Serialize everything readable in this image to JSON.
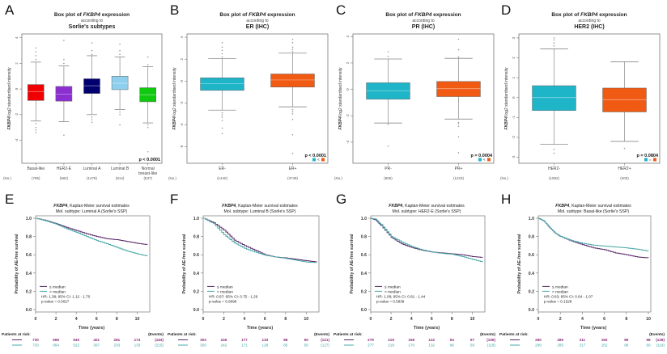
{
  "colors": {
    "cyan": "#1fb5c9",
    "orange": "#f05a12",
    "purple_line": "#5a2a6a",
    "teal_line": "#4aa8a8",
    "risk_purple": "#8a2a7a",
    "risk_teal": "#3aa0a0",
    "axis": "#555555"
  },
  "chart_data": [
    {
      "panel": "A",
      "type": "box",
      "title": [
        "Box plot of FKBP4 expression",
        "according to",
        "Sorlie's subtypes"
      ],
      "ylabel": "FKBP4 log2 standardised intensity",
      "ylim": [
        -5.8,
        4.3
      ],
      "yticks": [
        4,
        2,
        0,
        -2,
        -4
      ],
      "categories": [
        "Basal-like",
        "HER2-E",
        "Luminal A",
        "Luminal B",
        "Normal breast-like"
      ],
      "n": [
        "(785)",
        "(582)",
        "(1476)",
        "(814)",
        "(537)"
      ],
      "nlabel": "(No.)",
      "boxes": [
        {
          "color": "#f00000",
          "q1": -0.9,
          "median": -0.2,
          "q3": 0.35,
          "lo": -2.5,
          "hi": 2.1,
          "out": [
            2.3,
            2.6,
            2.9,
            3.2,
            -2.7,
            -3.0,
            -3.2,
            -3.4
          ]
        },
        {
          "color": "#8b2fd0",
          "q1": -0.95,
          "median": -0.4,
          "q3": 0.2,
          "lo": -2.55,
          "hi": 1.8,
          "out": [
            2.0,
            2.3,
            3.8,
            -3.6
          ]
        },
        {
          "color": "#00006e",
          "q1": -0.35,
          "median": 0.25,
          "q3": 0.8,
          "lo": -2.0,
          "hi": 2.6,
          "out": [
            2.7,
            3.0,
            3.6,
            -2.2,
            -2.4,
            -2.6
          ]
        },
        {
          "color": "#8ecfee",
          "q1": -0.05,
          "median": 0.45,
          "q3": 1.0,
          "lo": -1.6,
          "hi": 2.5,
          "out": [
            2.7,
            3.0,
            3.5,
            -1.8,
            -2.0,
            -2.8
          ]
        },
        {
          "color": "#10c810",
          "q1": -1.0,
          "median": -0.45,
          "q3": 0.1,
          "lo": -2.65,
          "hi": 1.75,
          "out": [
            1.9,
            2.5,
            -2.8,
            -3.0,
            -4.9
          ]
        }
      ],
      "pvalue": "p < 0.0001",
      "legend_marks": false
    },
    {
      "panel": "B",
      "type": "box",
      "title": [
        "Box plot of FKBP4 expression",
        "according to",
        "ER (IHC)"
      ],
      "ylabel": "FKBP4 log2 standardised intensity",
      "ylim": [
        -7.5,
        4.3
      ],
      "yticks": [
        4,
        2,
        0,
        -2,
        -4,
        -6
      ],
      "categories": [
        "ER-",
        "ER+"
      ],
      "n": [
        "(1440)",
        "(3749)"
      ],
      "nlabel": "(No.)",
      "boxes": [
        {
          "color": "#1fb5c9",
          "q1": -0.85,
          "median": -0.25,
          "q3": 0.3,
          "lo": -2.65,
          "hi": 2.05,
          "out": [
            2.2,
            2.5,
            2.8,
            3.1,
            3.5,
            -2.9,
            -3.1,
            -3.3,
            -3.6,
            -4.3,
            -4.8
          ]
        },
        {
          "color": "#f05a12",
          "q1": -0.55,
          "median": 0.1,
          "q3": 0.65,
          "lo": -2.35,
          "hi": 2.55,
          "out": [
            2.7,
            2.9,
            3.1,
            3.5,
            3.8,
            -2.6,
            -2.8,
            -3.0,
            -3.5,
            -4.9,
            -6.6
          ]
        }
      ],
      "pvalue": "p < 0.0001",
      "legend_marks": true,
      "legend_op": "<"
    },
    {
      "panel": "C",
      "type": "box",
      "title": [
        "Box plot of FKBP4 expression",
        "according to",
        "PR (IHC)"
      ],
      "ylabel": "FKBP4 log2 standardised intensity",
      "ylim": [
        -5.6,
        4.2
      ],
      "yticks": [
        4,
        2,
        0,
        -2,
        -4
      ],
      "categories": [
        "PR-",
        "PR+"
      ],
      "n": [
        "(906)",
        "(1223)"
      ],
      "nlabel": "(No.)",
      "boxes": [
        {
          "color": "#1fb5c9",
          "q1": -0.75,
          "median": -0.1,
          "q3": 0.5,
          "lo": -2.55,
          "hi": 2.3,
          "out": [
            2.5,
            2.85,
            -2.65,
            -4.3
          ]
        },
        {
          "color": "#f05a12",
          "q1": -0.55,
          "median": 0.05,
          "q3": 0.6,
          "lo": -2.25,
          "hi": 2.35,
          "out": [
            2.45,
            3.0,
            3.8,
            -2.5,
            -2.6,
            -2.8,
            -3.6,
            -4.8
          ]
        }
      ],
      "pvalue": "p = 0.0004",
      "legend_marks": true,
      "legend_op": "<"
    },
    {
      "panel": "D",
      "type": "box",
      "title": [
        "Box plot of FKBP4 expression",
        "according to",
        "HER2 (IHC)"
      ],
      "ylabel": "FKBP4 log2 standardised intensity",
      "ylim": [
        -3.3,
        3.2
      ],
      "yticks": [
        3,
        2,
        1,
        0,
        -1,
        -2,
        -3
      ],
      "categories": [
        "HER2-",
        "HER2+"
      ],
      "n": [
        "(1592)",
        "(200)"
      ],
      "nlabel": "(No.)",
      "boxes": [
        {
          "color": "#1fb5c9",
          "q1": -0.65,
          "median": 0.0,
          "q3": 0.6,
          "lo": -2.35,
          "hi": 2.45,
          "out": [
            2.6,
            2.75,
            2.9,
            3.0,
            -2.6,
            -2.8
          ]
        },
        {
          "color": "#f05a12",
          "q1": -0.72,
          "median": -0.1,
          "q3": 0.48,
          "lo": -2.2,
          "hi": 1.8,
          "out": [
            -2.55
          ]
        }
      ],
      "pvalue": "p = 0.0804",
      "legend_marks": true,
      "legend_op": "="
    },
    {
      "panel": "E",
      "type": "line",
      "title": [
        "FKBP4, Kaplan-Meier survival estimates",
        "Mol. subtype: Luminal A (Sorlie's SSP)"
      ],
      "xlabel": "Time (years)",
      "ylabel": "Probability of AE-free survival",
      "xlim": [
        0,
        11
      ],
      "xticks": [
        0,
        2,
        4,
        6,
        8,
        10
      ],
      "ylim": [
        0,
        1
      ],
      "yticks": [
        "0.0",
        "0.2",
        "0.4",
        "0.6",
        "0.8",
        "1.0"
      ],
      "legend": [
        "≤ median",
        "> median"
      ],
      "stats": [
        "HR: 1.38; 95% CI: 1.12 - 1.70",
        "p-value = 0.0027"
      ],
      "series": [
        {
          "name": "≤ median",
          "x": [
            0,
            1,
            2,
            3,
            4,
            5,
            6,
            7,
            8,
            9,
            10,
            11
          ],
          "y": [
            1.0,
            0.975,
            0.94,
            0.9,
            0.865,
            0.83,
            0.8,
            0.775,
            0.765,
            0.745,
            0.725,
            0.71
          ]
        },
        {
          "name": "> median",
          "x": [
            0,
            1,
            2,
            3,
            4,
            5,
            6,
            7,
            8,
            9,
            10,
            11
          ],
          "y": [
            1.0,
            0.97,
            0.935,
            0.885,
            0.845,
            0.8,
            0.755,
            0.72,
            0.68,
            0.64,
            0.61,
            0.585
          ]
        }
      ],
      "risk_header": "Patients at risk:",
      "events_header": "(Events)",
      "risk": [
        {
          "counts": [
            "730",
            "668",
            "530",
            "401",
            "281",
            "174"
          ],
          "events": "(163)"
        },
        {
          "counts": [
            "733",
            "664",
            "522",
            "367",
            "233",
            "133"
          ],
          "events": "(215)"
        }
      ]
    },
    {
      "panel": "F",
      "type": "line",
      "title": [
        "FKBP4, Kaplan-Meier survival estimates",
        "Mol. subtype: Luminal B (Sorlie's SSP)"
      ],
      "xlabel": "Time (years)",
      "ylabel": "Probability of AE-free survival",
      "xlim": [
        0,
        11
      ],
      "xticks": [
        0,
        2,
        4,
        6,
        8,
        10
      ],
      "ylim": [
        0,
        1
      ],
      "yticks": [
        "0.0",
        "0.2",
        "0.4",
        "0.6",
        "0.8",
        "1.0"
      ],
      "legend": [
        "≤ median",
        "> median"
      ],
      "stats": [
        "HR: 0.97; 95% CI: 0.75 - 1.26",
        "p-value = 0.8098"
      ],
      "series": [
        {
          "name": "≤ median",
          "x": [
            0,
            1,
            2,
            3,
            4,
            5,
            6,
            7,
            8,
            9,
            10,
            11
          ],
          "y": [
            1.0,
            0.95,
            0.87,
            0.76,
            0.7,
            0.65,
            0.6,
            0.575,
            0.565,
            0.55,
            0.535,
            0.52
          ]
        },
        {
          "name": "> median",
          "x": [
            0,
            1,
            2,
            3,
            4,
            5,
            6,
            7,
            8,
            9,
            10,
            11
          ],
          "y": [
            1.0,
            0.94,
            0.82,
            0.73,
            0.67,
            0.63,
            0.595,
            0.575,
            0.56,
            0.54,
            0.52,
            0.515
          ]
        }
      ],
      "risk_header": "Patients at risk:",
      "events_header": "(Events)",
      "risk": [
        {
          "counts": [
            "303",
            "246",
            "177",
            "133",
            "88",
            "60"
          ],
          "events": "(121)"
        },
        {
          "counts": [
            "303",
            "242",
            "171",
            "128",
            "85",
            "56"
          ],
          "events": "(127)"
        }
      ]
    },
    {
      "panel": "G",
      "type": "line",
      "title": [
        "FKBP4, Kaplan-Meier survival estimates",
        "Mol. subtype: HER2-E (Sorlie's SSP)"
      ],
      "xlabel": "Time (years)",
      "ylabel": "Probability of AE-free survival",
      "xlim": [
        0,
        11
      ],
      "xticks": [
        0,
        2,
        4,
        6,
        8,
        10
      ],
      "ylim": [
        0,
        1
      ],
      "yticks": [
        "0.0",
        "0.2",
        "0.4",
        "0.6",
        "0.8",
        "1.0"
      ],
      "legend": [
        "≤ median",
        "> median"
      ],
      "stats": [
        "HR: 1.08; 95% CI: 0.81 - 1.44",
        "p-value = 0.5838"
      ],
      "series": [
        {
          "name": "≤ median",
          "x": [
            0,
            0.5,
            1,
            2,
            3,
            4,
            5,
            6,
            7,
            8,
            9,
            10,
            11
          ],
          "y": [
            1.0,
            0.98,
            0.92,
            0.79,
            0.72,
            0.68,
            0.65,
            0.63,
            0.62,
            0.61,
            0.6,
            0.58,
            0.57
          ]
        },
        {
          "name": "> median",
          "x": [
            0,
            0.5,
            1,
            2,
            3,
            4,
            5,
            6,
            7,
            8,
            9,
            10,
            11
          ],
          "y": [
            1.0,
            0.99,
            0.93,
            0.8,
            0.74,
            0.69,
            0.655,
            0.63,
            0.615,
            0.605,
            0.58,
            0.55,
            0.52
          ]
        }
      ],
      "risk_header": "Patients at risk:",
      "events_header": "(Events)",
      "risk": [
        {
          "counts": [
            "279",
            "219",
            "158",
            "122",
            "94",
            "57"
          ],
          "events": "(106)"
        },
        {
          "counts": [
            "277",
            "218",
            "170",
            "132",
            "96",
            "59"
          ],
          "events": "(118)"
        }
      ]
    },
    {
      "panel": "H",
      "type": "line",
      "title": [
        "FKBP4, Kaplan-Meier survival estimates",
        "Mol. subtype: Basal-like (Sorlie's SSP)"
      ],
      "xlabel": "Time (years)",
      "ylabel": "Probability of AE-free survival",
      "xlim": [
        0,
        10
      ],
      "xticks": [
        0,
        2,
        4,
        6,
        8,
        10
      ],
      "ylim": [
        0,
        1
      ],
      "yticks": [
        "0.0",
        "0.2",
        "0.4",
        "0.6",
        "0.8",
        "1.0"
      ],
      "legend": [
        "≤ median",
        "> median"
      ],
      "stats": [
        "HR: 0.83; 95% CI: 0.64 - 1.07",
        "p-value = 0.1528"
      ],
      "series": [
        {
          "name": "≤ median",
          "x": [
            0,
            0.5,
            1,
            1.5,
            2,
            3,
            4,
            5,
            6,
            7,
            8,
            9,
            10
          ],
          "y": [
            1.0,
            0.97,
            0.9,
            0.84,
            0.8,
            0.75,
            0.71,
            0.675,
            0.655,
            0.62,
            0.6,
            0.575,
            0.565
          ]
        },
        {
          "name": "> median",
          "x": [
            0,
            0.5,
            1,
            1.5,
            2,
            3,
            4,
            5,
            6,
            7,
            8,
            9,
            10
          ],
          "y": [
            1.0,
            0.97,
            0.9,
            0.84,
            0.8,
            0.755,
            0.725,
            0.705,
            0.695,
            0.685,
            0.675,
            0.66,
            0.64
          ]
        }
      ],
      "risk_header": "Patients at risk:",
      "events_header": "(Events)",
      "risk": [
        {
          "counts": [
            "290",
            "285",
            "211",
            "150",
            "89",
            "58"
          ],
          "events": "(128)"
        },
        {
          "counts": [
            "289",
            "285",
            "217",
            "152",
            "98",
            "60"
          ],
          "events": "(119)"
        }
      ]
    }
  ]
}
